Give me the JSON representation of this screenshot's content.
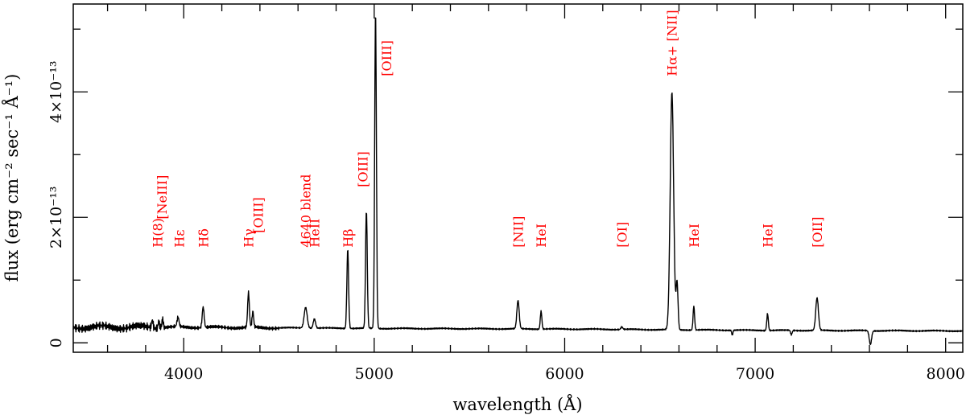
{
  "chart_data": {
    "type": "line",
    "xlabel": "wavelength (Å)",
    "ylabel": "flux (erg cm⁻² sec⁻¹ Å⁻¹)",
    "xlim": [
      3420,
      8090
    ],
    "ylim": [
      -1.5e-14,
      5.4e-13
    ],
    "x_ticks": [
      {
        "value": 4000,
        "label": "4000"
      },
      {
        "value": 5000,
        "label": "5000"
      },
      {
        "value": 6000,
        "label": "6000"
      },
      {
        "value": 7000,
        "label": "7000"
      },
      {
        "value": 8000,
        "label": "8000"
      }
    ],
    "y_ticks": [
      {
        "value": 0,
        "label": "0"
      },
      {
        "value": 2e-13,
        "label": "2×10⁻¹³"
      },
      {
        "value": 4e-13,
        "label": "4×10⁻¹³"
      }
    ],
    "series": [
      {
        "color": "#000000",
        "continuum": [
          [
            3420,
            2.5e-14
          ],
          [
            4000,
            2.5e-14
          ],
          [
            5000,
            2.3e-14
          ],
          [
            6000,
            2.2e-14
          ],
          [
            7000,
            2e-14
          ],
          [
            8090,
            1.9e-14
          ]
        ],
        "lines": [
          {
            "center": 3835,
            "peak": 1.3e-14,
            "sigma": 4
          },
          {
            "center": 3869,
            "peak": 1.2e-14,
            "sigma": 4
          },
          {
            "center": 3889,
            "peak": 1.5e-14,
            "sigma": 4
          },
          {
            "center": 3970,
            "peak": 1.5e-14,
            "sigma": 5
          },
          {
            "center": 4102,
            "peak": 3.3e-14,
            "sigma": 5
          },
          {
            "center": 4340,
            "peak": 5.5e-14,
            "sigma": 4.5
          },
          {
            "center": 4363,
            "peak": 2.5e-14,
            "sigma": 4
          },
          {
            "center": 4640,
            "peak": 3.3e-14,
            "sigma": 8
          },
          {
            "center": 4686,
            "peak": 1.5e-14,
            "sigma": 6
          },
          {
            "center": 4861,
            "peak": 1.27e-13,
            "sigma": 4.5
          },
          {
            "center": 4959,
            "peak": 1.87e-13,
            "sigma": 4.5
          },
          {
            "center": 5007,
            "peak": 5.07e-13,
            "sigma": 4.5
          },
          {
            "center": 5755,
            "peak": 4.5e-14,
            "sigma": 6
          },
          {
            "center": 5876,
            "peak": 2.9e-14,
            "sigma": 4
          },
          {
            "center": 6300,
            "peak": 4e-15,
            "sigma": 5
          },
          {
            "center": 6563,
            "peak": 3.78e-13,
            "sigma": 9
          },
          {
            "center": 6590,
            "peak": 7.5e-14,
            "sigma": 5
          },
          {
            "center": 6678,
            "peak": 3.8e-14,
            "sigma": 4
          },
          {
            "center": 7065,
            "peak": 2.7e-14,
            "sigma": 4
          },
          {
            "center": 7325,
            "peak": 5.2e-14,
            "sigma": 7
          },
          {
            "center": 6880,
            "peak": -8e-15,
            "sigma": 3
          },
          {
            "center": 7190,
            "peak": -7e-15,
            "sigma": 4
          },
          {
            "center": 7605,
            "peak": -2.2e-14,
            "sigma": 6
          }
        ]
      }
    ],
    "annotations": [
      {
        "text": "H(8)",
        "x": 3862,
        "y": 1.52e-13
      },
      {
        "text": "[NeIII]",
        "x": 3885,
        "y": 1.97e-13
      },
      {
        "text": "Hε",
        "x": 3975,
        "y": 1.52e-13
      },
      {
        "text": "Hδ",
        "x": 4102,
        "y": 1.52e-13
      },
      {
        "text": "Hγ",
        "x": 4340,
        "y": 1.52e-13
      },
      {
        "text": "[OIII]",
        "x": 4390,
        "y": 1.75e-13
      },
      {
        "text": "4640 blend",
        "x": 4640,
        "y": 1.52e-13
      },
      {
        "text": "HeII",
        "x": 4685,
        "y": 1.52e-13
      },
      {
        "text": "Hβ",
        "x": 4861,
        "y": 1.52e-13
      },
      {
        "text": "[OIII]",
        "x": 4940,
        "y": 2.48e-13
      },
      {
        "text": "[OIII]",
        "x": 5065,
        "y": 4.25e-13
      },
      {
        "text": "[NII]",
        "x": 5755,
        "y": 1.52e-13
      },
      {
        "text": "HeI",
        "x": 5876,
        "y": 1.52e-13
      },
      {
        "text": "[OI]",
        "x": 6300,
        "y": 1.52e-13
      },
      {
        "text": "Hα+ [NII]",
        "x": 6563,
        "y": 4.25e-13
      },
      {
        "text": "HeI",
        "x": 6678,
        "y": 1.52e-13
      },
      {
        "text": "HeI",
        "x": 7065,
        "y": 1.52e-13
      },
      {
        "text": "[OII]",
        "x": 7325,
        "y": 1.52e-13
      }
    ],
    "legend": "none",
    "grid": false
  }
}
